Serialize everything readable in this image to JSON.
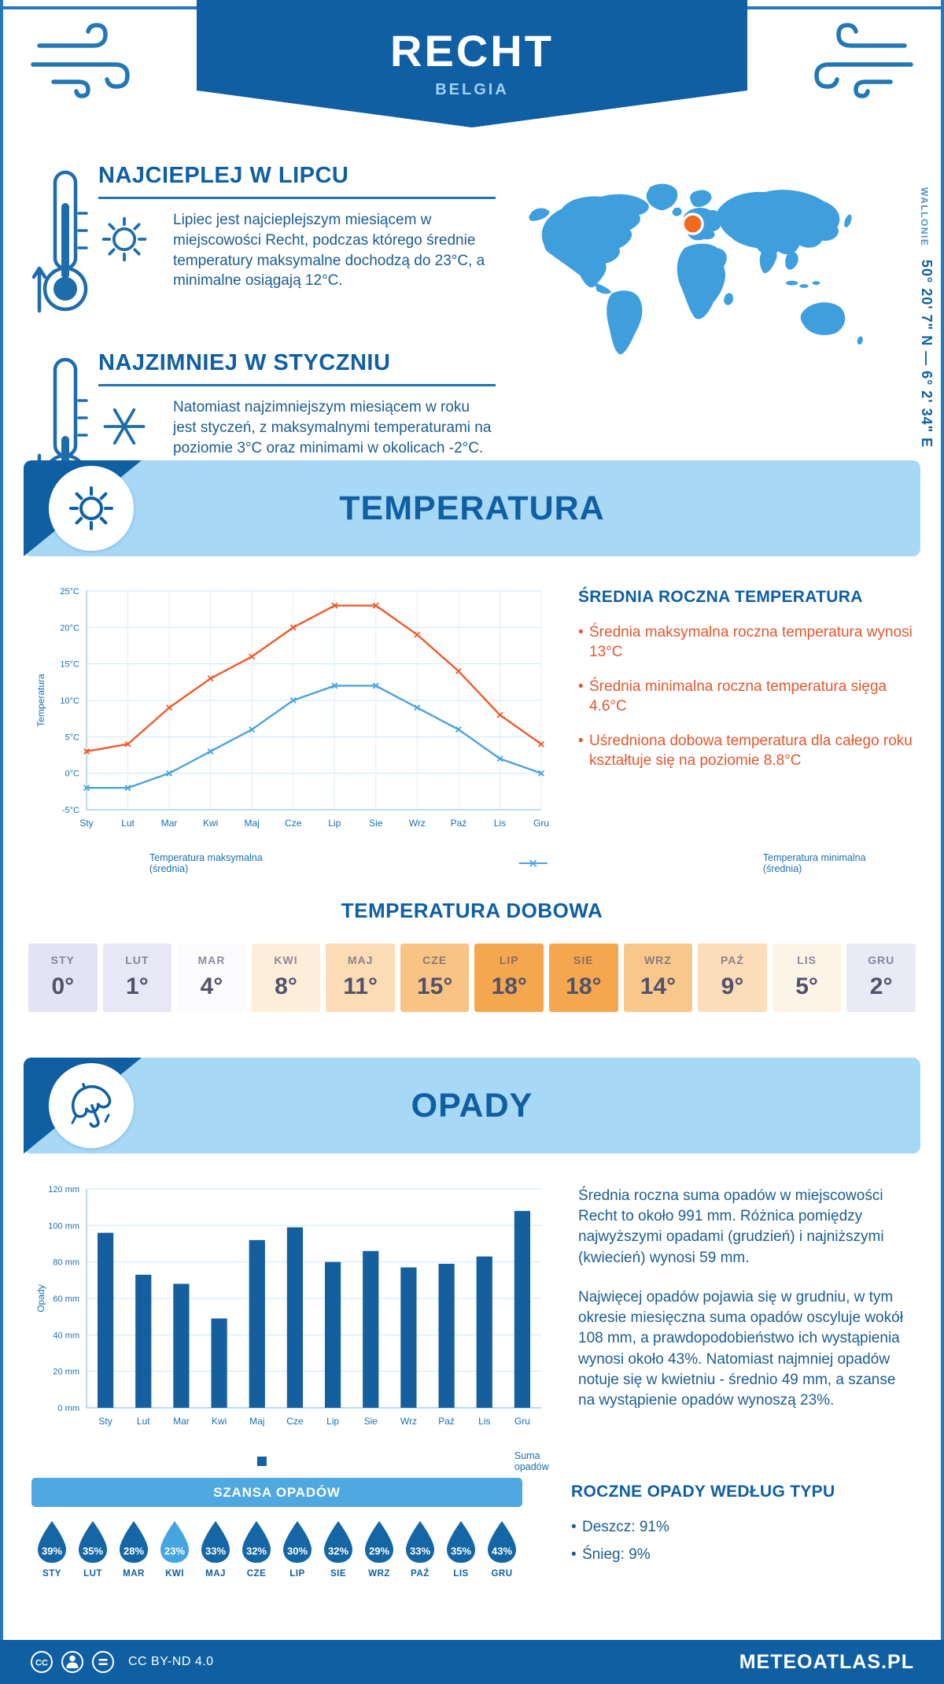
{
  "colors": {
    "primary": "#0f5fa2",
    "accent_orange": "#f2592b",
    "line_min_blue": "#4ba3dc",
    "banner_bg": "#a7d8f5",
    "bar_blue": "#155f9e",
    "map_blue": "#3f9fdd",
    "marker_orange": "#f26a1f",
    "droplet": "#1566a4",
    "droplet_light": "#44a5e0",
    "chance_header_bg": "#4fa8e0",
    "body_text": "#1d5c90",
    "tick_blue": "#1a6faf"
  },
  "icons": {
    "header_left": "wind-icon",
    "header_right": "wind-icon",
    "warm_block": [
      "thermometer-up-icon",
      "sun-icon"
    ],
    "cold_block": [
      "thermometer-down-icon",
      "snowflake-icon"
    ],
    "temperature_banner": "sun-icon",
    "precipitation_banner": "umbrella-icon",
    "footer": [
      "cc-icon",
      "attribution-person-icon",
      "no-derivatives-icon"
    ]
  },
  "header": {
    "title": "RECHT",
    "subtitle": "BELGIA"
  },
  "location": {
    "region": "WALLONIE",
    "coordinates": "50° 20' 7\" N — 6° 2' 34\" E"
  },
  "intro": {
    "warm": {
      "heading": "NAJCIEPLEJ W LIPCU",
      "text": "Lipiec jest najcieplejszym miesiącem w miejscowości Recht, podczas którego średnie temperatury maksymalne dochodzą do 23°C, a minimalne osiągają 12°C."
    },
    "cold": {
      "heading": "NAJZIMNIEJ W STYCZNIU",
      "text": "Natomiast najzimniejszym miesiącem w roku jest styczeń, z maksymalnymi temperaturami na poziomie 3°C oraz minimami w okolicach -2°C."
    }
  },
  "temperature": {
    "banner": "TEMPERATURA",
    "annual": {
      "heading": "ŚREDNIA ROCZNA TEMPERATURA",
      "bullets": [
        "Średnia maksymalna roczna temperatura wynosi 13°C",
        "Średnia minimalna roczna temperatura sięga 4.6°C",
        "Uśredniona dobowa temperatura dla całego roku kształtuje się na poziomie 8.8°C"
      ]
    },
    "daily": {
      "heading": "TEMPERATURA DOBOWA",
      "months": [
        "STY",
        "LUT",
        "MAR",
        "KWI",
        "MAJ",
        "CZE",
        "LIP",
        "SIE",
        "WRZ",
        "PAŹ",
        "LIS",
        "GRU"
      ],
      "values": [
        "0°",
        "1°",
        "4°",
        "8°",
        "11°",
        "15°",
        "18°",
        "18°",
        "14°",
        "9°",
        "5°",
        "2°"
      ],
      "cell_colors": [
        "#e3e3f3",
        "#e7e7f5",
        "#fbfbfd",
        "#fdeeda",
        "#fbdcb4",
        "#f8c383",
        "#f5a750",
        "#f5a750",
        "#f8c78c",
        "#fbddba",
        "#fdf4e8",
        "#eaeaf6"
      ]
    }
  },
  "precipitation": {
    "banner": "OPADY",
    "paragraphs": [
      "Średnia roczna suma opadów w miejscowości Recht to około 991 mm. Różnica pomiędzy najwyższymi opadami (grudzień) i najniższymi (kwiecień) wynosi 59 mm.",
      "Najwięcej opadów pojawia się w grudniu, w tym okresie miesięczna suma opadów oscyluje wokół 108 mm, a prawdopodobieństwo ich wystąpienia wynosi około 43%. Natomiast najmniej opadów notuje się w kwietniu - średnio 49 mm, a szanse na wystąpienie opadów wynoszą 23%."
    ],
    "chance": {
      "heading": "SZANSA OPADÓW",
      "months": [
        "STY",
        "LUT",
        "MAR",
        "KWI",
        "MAJ",
        "CZE",
        "LIP",
        "SIE",
        "WRZ",
        "PAŹ",
        "LIS",
        "GRU"
      ],
      "values": [
        "39%",
        "35%",
        "28%",
        "23%",
        "33%",
        "32%",
        "30%",
        "32%",
        "29%",
        "33%",
        "35%",
        "43%"
      ],
      "light_indices": [
        3
      ]
    },
    "types": {
      "heading": "ROCZNE OPADY WEDŁUG TYPU",
      "bullets": [
        "Deszcz: 91%",
        "Śnieg: 9%"
      ]
    }
  },
  "chart_data": [
    {
      "type": "line",
      "name": "monthly-temperature",
      "categories": [
        "Sty",
        "Lut",
        "Mar",
        "Kwi",
        "Maj",
        "Cze",
        "Lip",
        "Sie",
        "Wrz",
        "Paź",
        "Lis",
        "Gru"
      ],
      "series": [
        {
          "name": "Temperatura maksymalna (średnia)",
          "color": "#f2592b",
          "values": [
            3,
            4,
            9,
            13,
            16,
            20,
            23,
            23,
            19,
            14,
            8,
            4
          ]
        },
        {
          "name": "Temperatura minimalna (średnia)",
          "color": "#4ba3dc",
          "values": [
            -2,
            -2,
            0,
            3,
            6,
            10,
            12,
            12,
            9,
            6,
            2,
            0
          ]
        }
      ],
      "ylabel": "Temperatura",
      "ylim": [
        -5,
        25
      ],
      "ytick_step": 5,
      "ytick_suffix": "°C",
      "grid": true,
      "legend_position": "bottom"
    },
    {
      "type": "bar",
      "name": "monthly-precipitation",
      "categories": [
        "Sty",
        "Lut",
        "Mar",
        "Kwi",
        "Maj",
        "Cze",
        "Lip",
        "Sie",
        "Wrz",
        "Paź",
        "Lis",
        "Gru"
      ],
      "series": [
        {
          "name": "Suma opadów",
          "color": "#155f9e",
          "values": [
            96,
            73,
            68,
            49,
            92,
            99,
            80,
            86,
            77,
            79,
            83,
            108
          ]
        }
      ],
      "ylabel": "Opady",
      "ylim": [
        0,
        120
      ],
      "ytick_step": 20,
      "ytick_suffix": " mm",
      "grid": true,
      "legend_position": "bottom"
    }
  ],
  "footer": {
    "license": "CC BY-ND 4.0",
    "brand": "METEOATLAS.PL"
  }
}
